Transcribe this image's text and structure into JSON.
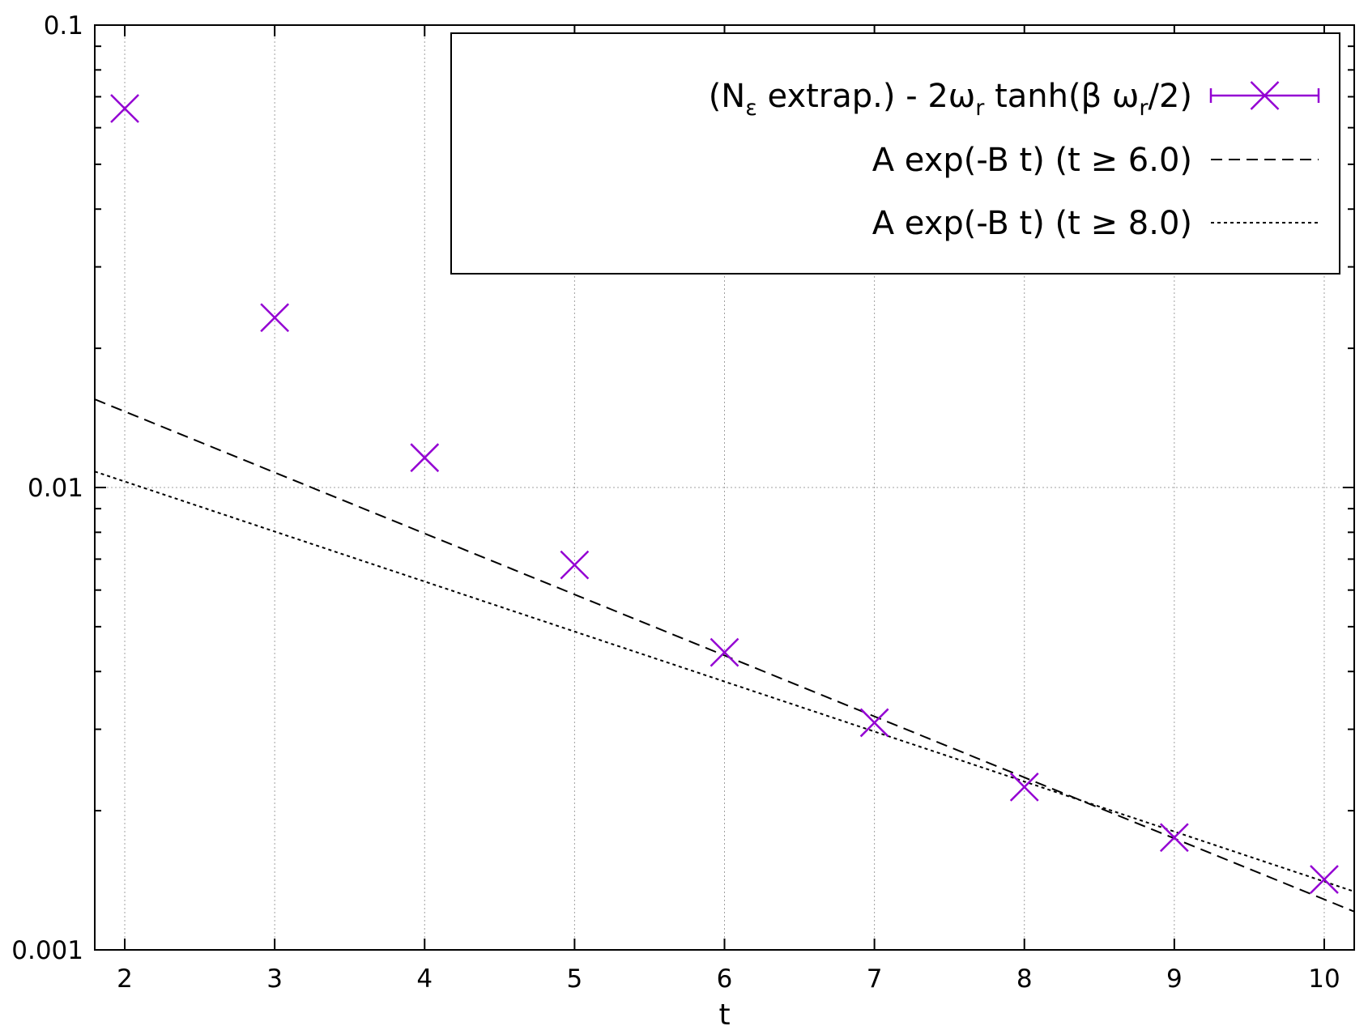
{
  "chart_data": {
    "type": "scatter",
    "xlabel": "t",
    "ylabel": "",
    "xlim": [
      1.8,
      10.2
    ],
    "ylim": [
      0.001,
      0.1
    ],
    "yscale": "log",
    "grid": true,
    "legend_position": "top-right",
    "xticks": [
      "2",
      "3",
      "4",
      "5",
      "6",
      "7",
      "8",
      "9",
      "10"
    ],
    "yticks": [
      {
        "value": 0.1,
        "label": "0.1"
      },
      {
        "value": 0.01,
        "label": "0.01"
      },
      {
        "value": 0.001,
        "label": "0.001"
      }
    ],
    "series": [
      {
        "legend_parts": [
          "(N",
          "ε",
          " extrap.) - 2ω",
          "r",
          " tanh(β ω",
          "r",
          "/2)"
        ],
        "kind": "points",
        "marker": "cross",
        "color": "#9400d3",
        "x": [
          2,
          3,
          4,
          5,
          6,
          7,
          8,
          9,
          10
        ],
        "y": [
          0.066,
          0.0233,
          0.0116,
          0.0068,
          0.0044,
          0.0031,
          0.00225,
          0.00175,
          0.00142
        ]
      },
      {
        "name": "A exp(-B t) (t ≥ 6.0)",
        "kind": "line",
        "dash": "dashed",
        "color": "#000000",
        "A": 0.0268,
        "B": 0.3037
      },
      {
        "name": "A exp(-B t) (t ≥ 8.0)",
        "kind": "line",
        "dash": "dotted",
        "color": "#000000",
        "A": 0.01695,
        "B": 0.249
      }
    ]
  }
}
